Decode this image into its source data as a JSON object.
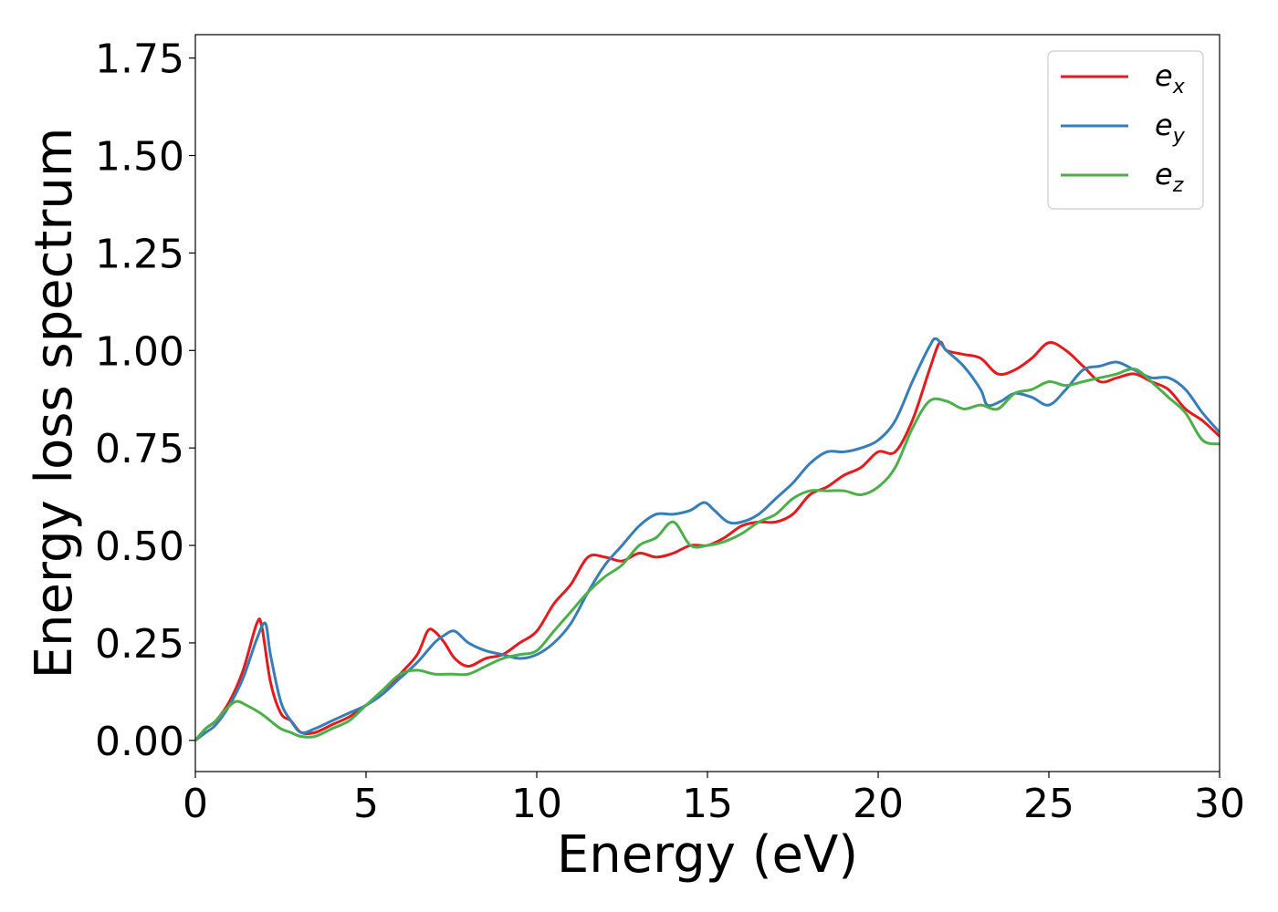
{
  "chart_data": {
    "type": "line",
    "xlabel": "Energy (eV)",
    "ylabel": "Energy loss spectrum",
    "xlim": [
      0,
      30
    ],
    "ylim": [
      -0.08,
      1.81
    ],
    "xticks": [
      0,
      5,
      10,
      15,
      20,
      25,
      30
    ],
    "xtick_labels": [
      "0",
      "5",
      "10",
      "15",
      "20",
      "25",
      "30"
    ],
    "yticks": [
      0.0,
      0.25,
      0.5,
      0.75,
      1.0,
      1.25,
      1.5,
      1.75
    ],
    "ytick_labels": [
      "0.00",
      "0.25",
      "0.50",
      "0.75",
      "1.00",
      "1.25",
      "1.50",
      "1.75"
    ],
    "grid": false,
    "legend_position": "top-right",
    "series": [
      {
        "name": "e",
        "subscript": "x",
        "color": "#e41a1c",
        "x": [
          0,
          0.3,
          0.6,
          1.0,
          1.4,
          1.8,
          1.95,
          2.2,
          2.5,
          2.8,
          3.1,
          3.5,
          4.0,
          4.5,
          5.0,
          5.5,
          6.0,
          6.5,
          6.8,
          7.0,
          7.3,
          7.6,
          8.0,
          8.5,
          9.0,
          9.5,
          10.0,
          10.5,
          11.0,
          11.5,
          12.0,
          12.5,
          13.0,
          13.5,
          14.0,
          14.5,
          15.0,
          15.5,
          16.0,
          16.5,
          17.0,
          17.5,
          18.0,
          18.5,
          19.0,
          19.5,
          20.0,
          20.5,
          21.0,
          21.5,
          21.8,
          22.0,
          22.5,
          23.0,
          23.5,
          24.0,
          24.5,
          25.0,
          25.5,
          26.0,
          26.5,
          27.0,
          27.5,
          28.0,
          28.5,
          29.0,
          29.5,
          30.0
        ],
        "y": [
          0.0,
          0.03,
          0.05,
          0.1,
          0.18,
          0.3,
          0.29,
          0.15,
          0.07,
          0.05,
          0.02,
          0.02,
          0.04,
          0.06,
          0.09,
          0.12,
          0.17,
          0.22,
          0.28,
          0.28,
          0.25,
          0.21,
          0.19,
          0.21,
          0.22,
          0.25,
          0.28,
          0.35,
          0.4,
          0.47,
          0.47,
          0.46,
          0.48,
          0.47,
          0.48,
          0.5,
          0.5,
          0.52,
          0.55,
          0.56,
          0.56,
          0.58,
          0.63,
          0.65,
          0.68,
          0.7,
          0.74,
          0.74,
          0.82,
          0.95,
          1.02,
          1.0,
          0.99,
          0.98,
          0.94,
          0.95,
          0.98,
          1.02,
          1.0,
          0.96,
          0.92,
          0.93,
          0.94,
          0.92,
          0.9,
          0.85,
          0.82,
          0.78
        ]
      },
      {
        "name": "e",
        "subscript": "y",
        "color": "#377eb8",
        "x": [
          0,
          0.3,
          0.6,
          1.0,
          1.4,
          1.8,
          2.05,
          2.2,
          2.5,
          2.8,
          3.1,
          3.5,
          4.0,
          4.5,
          5.0,
          5.5,
          6.0,
          6.5,
          7.0,
          7.3,
          7.6,
          8.0,
          8.5,
          9.0,
          9.5,
          10.0,
          10.5,
          11.0,
          11.5,
          12.0,
          12.5,
          13.0,
          13.5,
          14.0,
          14.5,
          14.9,
          15.2,
          15.6,
          16.0,
          16.5,
          17.0,
          17.5,
          18.0,
          18.5,
          19.0,
          19.5,
          20.0,
          20.5,
          21.0,
          21.5,
          21.7,
          22.0,
          22.5,
          23.0,
          23.2,
          23.6,
          24.0,
          24.5,
          25.0,
          25.5,
          26.0,
          26.5,
          27.0,
          27.5,
          28.0,
          28.5,
          29.0,
          29.5,
          30.0
        ],
        "y": [
          0.0,
          0.02,
          0.04,
          0.09,
          0.16,
          0.26,
          0.3,
          0.22,
          0.1,
          0.05,
          0.02,
          0.03,
          0.05,
          0.07,
          0.09,
          0.12,
          0.16,
          0.2,
          0.25,
          0.27,
          0.28,
          0.25,
          0.23,
          0.22,
          0.21,
          0.22,
          0.25,
          0.3,
          0.38,
          0.45,
          0.5,
          0.55,
          0.58,
          0.58,
          0.59,
          0.61,
          0.59,
          0.56,
          0.56,
          0.58,
          0.62,
          0.66,
          0.71,
          0.74,
          0.74,
          0.75,
          0.77,
          0.82,
          0.92,
          1.01,
          1.03,
          1.0,
          0.96,
          0.9,
          0.86,
          0.87,
          0.89,
          0.88,
          0.86,
          0.9,
          0.95,
          0.96,
          0.97,
          0.95,
          0.93,
          0.93,
          0.9,
          0.84,
          0.79
        ]
      },
      {
        "name": "e",
        "subscript": "z",
        "color": "#4daf4a",
        "x": [
          0,
          0.3,
          0.6,
          0.9,
          1.2,
          1.5,
          1.9,
          2.2,
          2.5,
          2.8,
          3.1,
          3.5,
          4.0,
          4.5,
          5.0,
          5.5,
          6.0,
          6.5,
          7.0,
          7.5,
          8.0,
          8.5,
          9.0,
          9.5,
          10.0,
          10.5,
          11.0,
          11.5,
          12.0,
          12.5,
          13.0,
          13.5,
          14.0,
          14.5,
          15.0,
          15.5,
          16.0,
          16.5,
          17.0,
          17.5,
          18.0,
          18.5,
          19.0,
          19.5,
          20.0,
          20.5,
          21.0,
          21.5,
          22.0,
          22.5,
          23.0,
          23.5,
          24.0,
          24.5,
          25.0,
          25.5,
          26.0,
          26.5,
          27.0,
          27.3,
          27.6,
          28.0,
          28.5,
          29.0,
          29.5,
          30.0
        ],
        "y": [
          0.0,
          0.03,
          0.05,
          0.08,
          0.1,
          0.09,
          0.07,
          0.05,
          0.03,
          0.02,
          0.01,
          0.01,
          0.03,
          0.05,
          0.09,
          0.13,
          0.17,
          0.18,
          0.17,
          0.17,
          0.17,
          0.19,
          0.21,
          0.22,
          0.23,
          0.28,
          0.33,
          0.38,
          0.42,
          0.45,
          0.5,
          0.52,
          0.56,
          0.5,
          0.5,
          0.51,
          0.53,
          0.56,
          0.58,
          0.62,
          0.64,
          0.64,
          0.64,
          0.63,
          0.65,
          0.7,
          0.8,
          0.87,
          0.87,
          0.85,
          0.86,
          0.85,
          0.89,
          0.9,
          0.92,
          0.91,
          0.92,
          0.93,
          0.94,
          0.95,
          0.95,
          0.92,
          0.88,
          0.84,
          0.77,
          0.76
        ]
      }
    ]
  }
}
